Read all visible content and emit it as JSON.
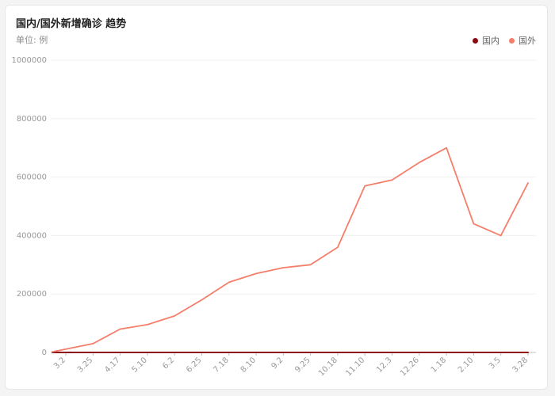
{
  "header": {
    "title": "国内/国外新增确诊 趋势",
    "unit": "单位: 例"
  },
  "colors": {
    "domestic": "#8b0a14",
    "foreign": "#f57e6b",
    "axis": "#c0c0c0",
    "grid": "#f0f0f0",
    "background": "#ffffff"
  },
  "chart_data": {
    "type": "line",
    "title": "国内/国外新增确诊 趋势",
    "ylabel": "单位: 例",
    "xlabel": "",
    "ylim": [
      0,
      1000000
    ],
    "yticks": [
      "1000000",
      "800000",
      "600000",
      "400000",
      "200000",
      "0"
    ],
    "grid": true,
    "legend_position": "top-right",
    "categories": [
      "3.2",
      "3.25",
      "4.17",
      "5.10",
      "6.2",
      "6.25",
      "7.18",
      "8.10",
      "9.2",
      "9.25",
      "10.18",
      "11.10",
      "12.3",
      "12.26",
      "1.18",
      "2.10",
      "3.5",
      "3.28"
    ],
    "series": [
      {
        "name": "国内",
        "color": "#8b0a14",
        "values": [
          0,
          0,
          0,
          0,
          0,
          0,
          0,
          0,
          0,
          0,
          0,
          0,
          0,
          0,
          0,
          0,
          0,
          0
        ]
      },
      {
        "name": "国外",
        "color": "#f57e6b",
        "values": [
          2000,
          30000,
          80000,
          95000,
          125000,
          180000,
          240000,
          270000,
          290000,
          300000,
          360000,
          570000,
          590000,
          650000,
          700000,
          440000,
          400000,
          580000
        ]
      }
    ]
  }
}
